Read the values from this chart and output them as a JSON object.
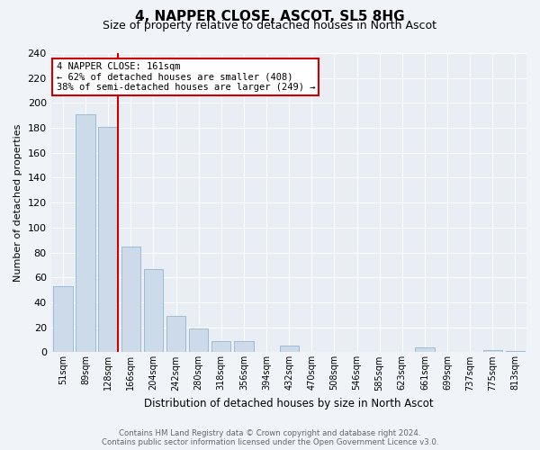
{
  "title": "4, NAPPER CLOSE, ASCOT, SL5 8HG",
  "subtitle": "Size of property relative to detached houses in North Ascot",
  "xlabel": "Distribution of detached houses by size in North Ascot",
  "ylabel": "Number of detached properties",
  "bar_labels": [
    "51sqm",
    "89sqm",
    "128sqm",
    "166sqm",
    "204sqm",
    "242sqm",
    "280sqm",
    "318sqm",
    "356sqm",
    "394sqm",
    "432sqm",
    "470sqm",
    "508sqm",
    "546sqm",
    "585sqm",
    "623sqm",
    "661sqm",
    "699sqm",
    "737sqm",
    "775sqm",
    "813sqm"
  ],
  "bar_values": [
    53,
    191,
    181,
    85,
    67,
    29,
    19,
    9,
    9,
    0,
    5,
    0,
    0,
    0,
    0,
    0,
    4,
    0,
    0,
    2,
    1
  ],
  "bar_color": "#ccdaea",
  "bar_edge_color": "#9bbcd4",
  "property_line_color": "#cc0000",
  "annotation_title": "4 NAPPER CLOSE: 161sqm",
  "annotation_line1": "← 62% of detached houses are smaller (408)",
  "annotation_line2": "38% of semi-detached houses are larger (249) →",
  "annotation_box_color": "#ffffff",
  "annotation_box_edge": "#cc0000",
  "ylim": [
    0,
    240
  ],
  "yticks": [
    0,
    20,
    40,
    60,
    80,
    100,
    120,
    140,
    160,
    180,
    200,
    220,
    240
  ],
  "footer_line1": "Contains HM Land Registry data © Crown copyright and database right 2024.",
  "footer_line2": "Contains public sector information licensed under the Open Government Licence v3.0.",
  "plot_bg_color": "#e8eef4",
  "fig_bg_color": "#f0f4f8",
  "grid_color": "#ffffff"
}
